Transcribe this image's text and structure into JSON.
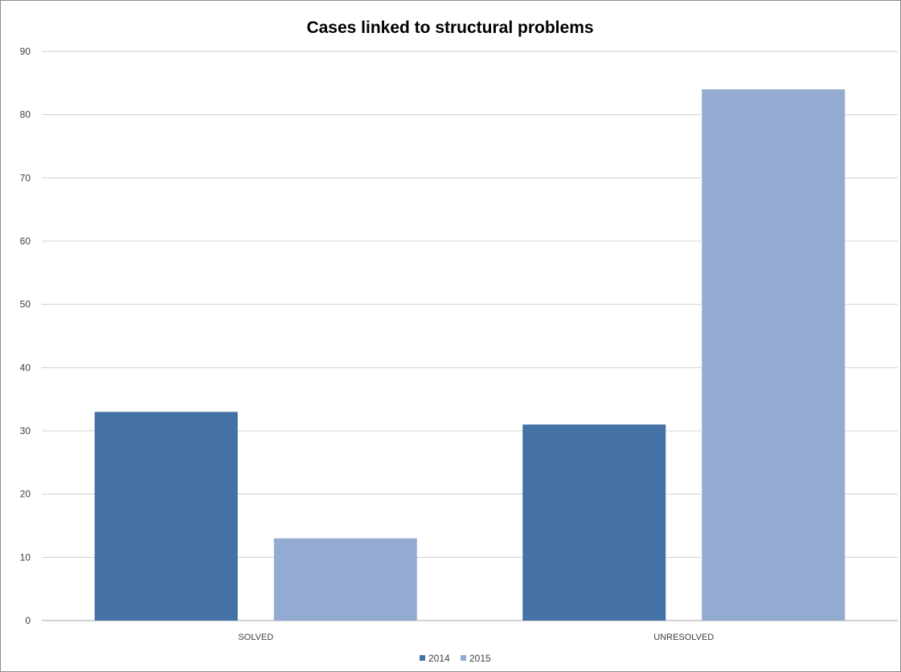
{
  "chart_data": {
    "type": "bar",
    "title": "Cases linked to structural problems",
    "xlabel": "",
    "ylabel": "",
    "categories": [
      "SOLVED",
      "UNRESOLVED"
    ],
    "series": [
      {
        "name": "2014",
        "values": [
          33,
          31
        ],
        "color": "#4472a6"
      },
      {
        "name": "2015",
        "values": [
          13,
          84
        ],
        "color": "#93abd1"
      }
    ],
    "ylim": [
      0,
      90
    ],
    "yticks": [
      "0",
      "10",
      "20",
      "30",
      "40",
      "50",
      "60",
      "70",
      "80",
      "90"
    ],
    "grid": true,
    "legend_position": "bottom"
  }
}
